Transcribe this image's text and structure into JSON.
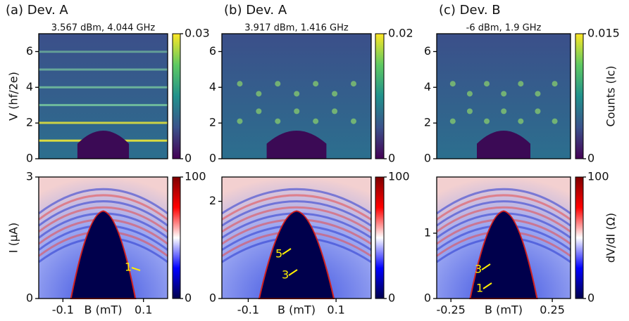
{
  "chart_data": [
    {
      "type": "heatmap",
      "title": "(a) Dev. A",
      "subtitle": "3.567 dBm, 4.044 GHz",
      "ylabel": "V (hf/2e)",
      "ylim": [
        0,
        7
      ],
      "yticks": [
        0,
        2,
        4,
        6
      ],
      "xlim": [
        -0.16,
        0.16
      ],
      "colormap": "viridis",
      "colorbar": {
        "lim": [
          0,
          0.03
        ],
        "ticks": [
          0,
          0.03
        ]
      }
    },
    {
      "type": "heatmap",
      "title": "(b) Dev. A",
      "subtitle": "3.917 dBm, 1.416 GHz",
      "ylim": [
        0,
        7
      ],
      "yticks": [
        0,
        2,
        4,
        6
      ],
      "xlim": [
        -0.16,
        0.18
      ],
      "colormap": "viridis",
      "colorbar": {
        "lim": [
          0,
          0.02
        ],
        "ticks": [
          0,
          0.02
        ]
      }
    },
    {
      "type": "heatmap",
      "title": "(c) Dev. B",
      "subtitle": "-6 dBm, 1.9 GHz",
      "ylim": [
        0,
        7
      ],
      "yticks": [
        0,
        2,
        4,
        6
      ],
      "xlim": [
        -0.32,
        0.34
      ],
      "colormap": "viridis",
      "colorbar": {
        "lim": [
          0,
          0.015
        ],
        "ticks": [
          0,
          0.015
        ],
        "label": "Counts (Ic)"
      }
    },
    {
      "type": "heatmap",
      "ylabel": "I (μA)",
      "xlabel": "B (mT)",
      "ylim": [
        0,
        3
      ],
      "yticks": [
        0,
        3
      ],
      "xlim": [
        -0.16,
        0.16
      ],
      "xticks": [
        -0.1,
        0.1
      ],
      "colormap": "seismic",
      "colorbar": {
        "lim": [
          0,
          100
        ],
        "ticks": [
          0,
          100
        ]
      },
      "annotations": [
        "1"
      ]
    },
    {
      "type": "heatmap",
      "xlabel": "B (mT)",
      "ylim": [
        0,
        2.5
      ],
      "yticks": [
        0,
        2
      ],
      "xlim": [
        -0.16,
        0.18
      ],
      "xticks": [
        -0.1,
        0.1
      ],
      "colormap": "seismic",
      "colorbar": {
        "lim": [
          0,
          100
        ],
        "ticks": [
          0,
          100
        ]
      },
      "annotations": [
        "5",
        "3"
      ]
    },
    {
      "type": "heatmap",
      "xlabel": "B (mT)",
      "ylim": [
        0,
        1.86
      ],
      "yticks": [
        0,
        1
      ],
      "xlim": [
        -0.32,
        0.34
      ],
      "xticks": [
        -0.25,
        0.25
      ],
      "colormap": "seismic",
      "colorbar": {
        "lim": [
          0,
          100
        ],
        "ticks": [
          0,
          100
        ],
        "label": "dV/dI (Ω)"
      },
      "annotations": [
        "3",
        "1"
      ]
    }
  ]
}
